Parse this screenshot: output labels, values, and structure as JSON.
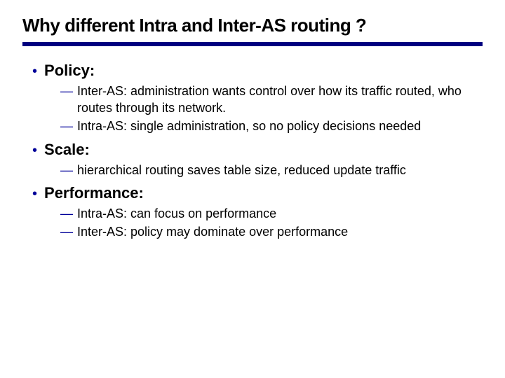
{
  "colors": {
    "rule": "#000080",
    "bullet": "#000099",
    "text": "#000000",
    "background": "#ffffff"
  },
  "typography": {
    "title_family": "Arial Black",
    "body_family": "Verdana",
    "title_size_pt": 20,
    "bullet_size_pt": 16,
    "sub_size_pt": 13
  },
  "title": "Why different Intra and Inter-AS routing ?",
  "sections": [
    {
      "heading": "Policy:",
      "subs": [
        "Inter-AS: administration wants control over how its traffic routed, who routes through its network.",
        "Intra-AS: single administration, so no policy decisions needed"
      ]
    },
    {
      "heading": "Scale:",
      "subs": [
        "hierarchical routing saves table size, reduced update traffic"
      ]
    },
    {
      "heading": "Performance:",
      "subs": [
        "Intra-AS: can focus on performance",
        "Inter-AS: policy may dominate over performance"
      ]
    }
  ]
}
